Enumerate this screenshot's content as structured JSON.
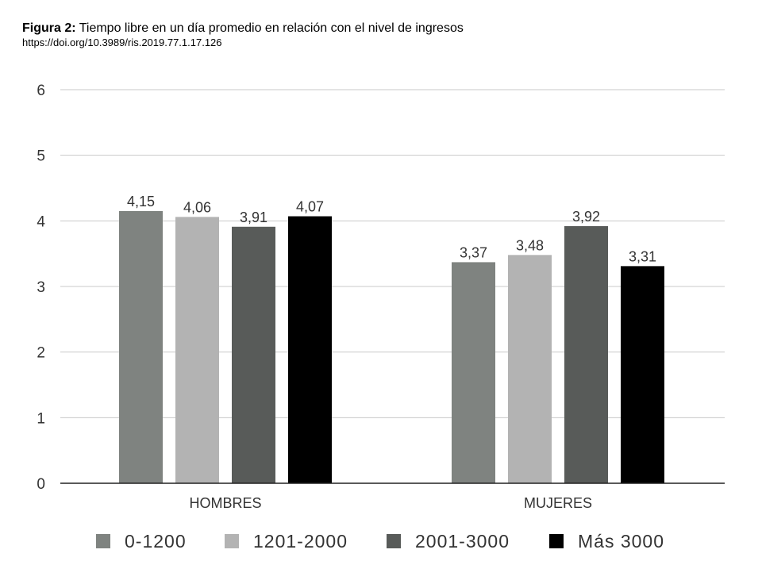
{
  "figure": {
    "label": "Figura 2:",
    "title": "Tiempo libre en un día promedio en relación con el nivel de ingresos",
    "doi": "https://doi.org/10.3989/ris.2019.77.1.17.126"
  },
  "chart_data": {
    "type": "bar",
    "title": "",
    "xlabel": "",
    "ylabel": "",
    "categories": [
      "HOMBRES",
      "MUJERES"
    ],
    "ylim": [
      0,
      6
    ],
    "yticks": [
      "0",
      "1",
      "2",
      "3",
      "4",
      "5",
      "6"
    ],
    "grid": true,
    "legend_position": "bottom",
    "series": [
      {
        "name": "0-1200",
        "color": "#7f8380",
        "values": [
          4.15,
          3.37
        ],
        "labels": [
          "4,15",
          "3,37"
        ]
      },
      {
        "name": "1201-2000",
        "color": "#b3b3b3",
        "values": [
          4.06,
          3.48
        ],
        "labels": [
          "4,06",
          "3,48"
        ]
      },
      {
        "name": "2001-3000",
        "color": "#585b59",
        "values": [
          3.91,
          3.92
        ],
        "labels": [
          "3,91",
          "3,92"
        ]
      },
      {
        "name": "Más 3000",
        "color": "#000000",
        "values": [
          4.07,
          3.31
        ],
        "labels": [
          "4,07",
          "3,31"
        ]
      }
    ]
  }
}
